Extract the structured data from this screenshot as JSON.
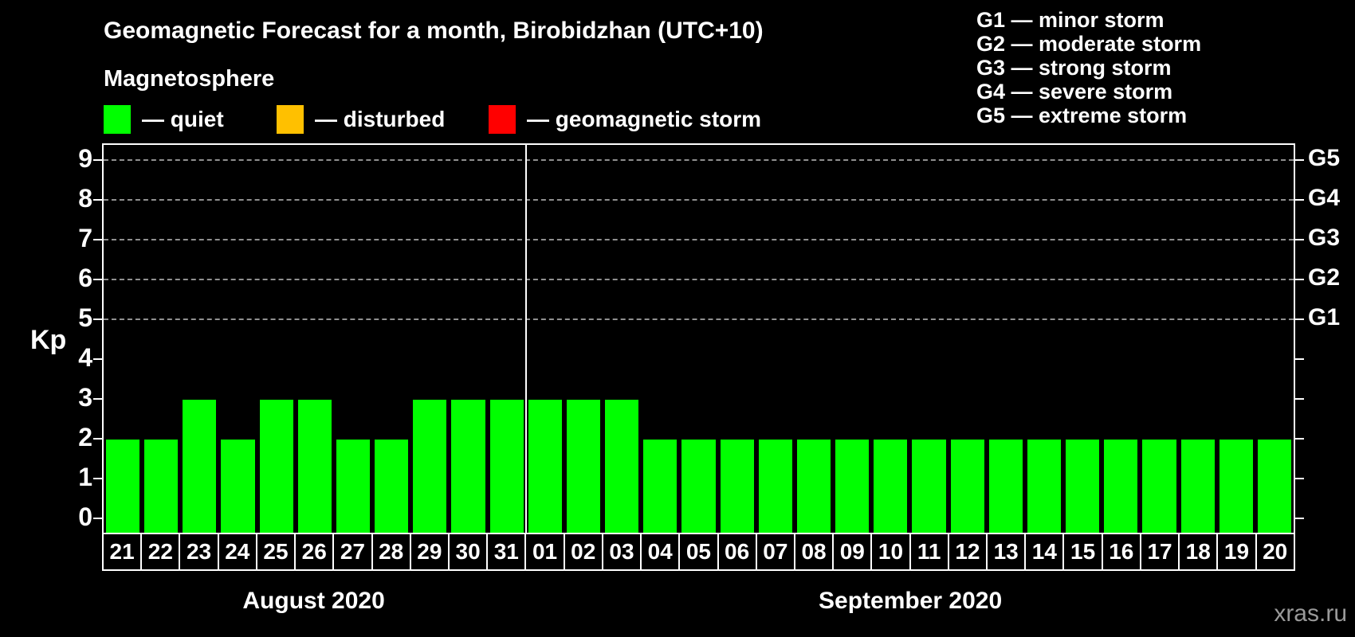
{
  "header": {
    "title": "Geomagnetic Forecast for a month, Birobidzhan (UTC+10)",
    "subtitle": "Magnetosphere"
  },
  "legend": {
    "items": [
      {
        "name": "quiet",
        "label": "— quiet",
        "color": "#00ff00"
      },
      {
        "name": "disturbed",
        "label": "— disturbed",
        "color": "#ffc000"
      },
      {
        "name": "storm",
        "label": "— geomagnetic storm",
        "color": "#ff0000"
      }
    ]
  },
  "storm_scale": {
    "items": [
      "G1 — minor storm",
      "G2 — moderate storm",
      "G3 — strong storm",
      "G4 — severe storm",
      "G5 — extreme storm"
    ]
  },
  "chart_data": {
    "type": "bar",
    "title": "Geomagnetic Forecast for a month, Birobidzhan (UTC+10)",
    "ylabel": "Kp",
    "ylim": [
      -0.35,
      9.4
    ],
    "yticks": [
      0,
      1,
      2,
      3,
      4,
      5,
      6,
      7,
      8,
      9
    ],
    "gridlines_at": [
      5,
      6,
      7,
      8,
      9
    ],
    "grid": "dashed",
    "legend_position": "top",
    "right_axis_labels": [
      {
        "kp": 5,
        "label": "G1"
      },
      {
        "kp": 6,
        "label": "G2"
      },
      {
        "kp": 7,
        "label": "G3"
      },
      {
        "kp": 8,
        "label": "G4"
      },
      {
        "kp": 9,
        "label": "G5"
      }
    ],
    "categories": [
      "21",
      "22",
      "23",
      "24",
      "25",
      "26",
      "27",
      "28",
      "29",
      "30",
      "31",
      "01",
      "02",
      "03",
      "04",
      "05",
      "06",
      "07",
      "08",
      "09",
      "10",
      "11",
      "12",
      "13",
      "14",
      "15",
      "16",
      "17",
      "18",
      "19",
      "20"
    ],
    "values": [
      2,
      2,
      3,
      2,
      3,
      3,
      2,
      2,
      3,
      3,
      3,
      3,
      3,
      3,
      2,
      2,
      2,
      2,
      2,
      2,
      2,
      2,
      2,
      2,
      2,
      2,
      2,
      2,
      2,
      2,
      2
    ],
    "month_groups": [
      {
        "label": "August 2020",
        "days": 11
      },
      {
        "label": "September 2020",
        "days": 20
      }
    ]
  },
  "watermark": "xras.ru"
}
